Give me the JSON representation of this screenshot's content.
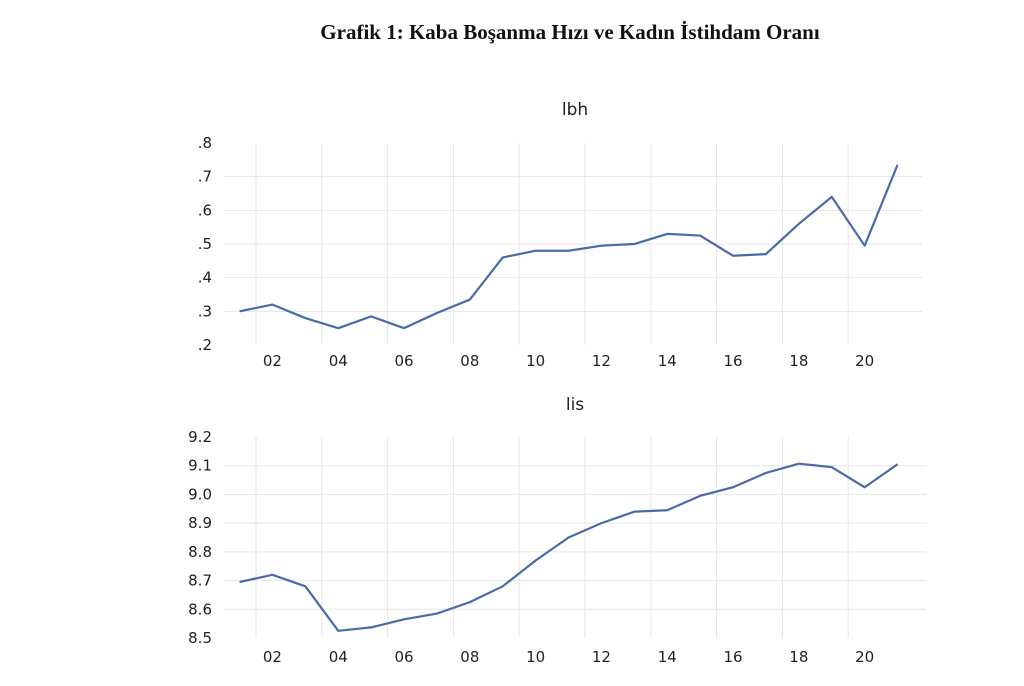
{
  "page_title": "Grafik 1: Kaba Boşanma Hızı ve Kadın İstihdam Oranı",
  "chart_data": [
    {
      "type": "line",
      "title": "lbh",
      "x": [
        2001,
        2002,
        2003,
        2004,
        2005,
        2006,
        2007,
        2008,
        2009,
        2010,
        2011,
        2012,
        2013,
        2014,
        2015,
        2016,
        2017,
        2018,
        2019,
        2020,
        2021
      ],
      "values": [
        0.3,
        0.32,
        0.28,
        0.25,
        0.285,
        0.25,
        0.295,
        0.335,
        0.46,
        0.48,
        0.48,
        0.495,
        0.5,
        0.53,
        0.525,
        0.465,
        0.47,
        0.56,
        0.64,
        0.495,
        0.735
      ],
      "xtick_labels": [
        "02",
        "04",
        "06",
        "08",
        "10",
        "12",
        "14",
        "16",
        "18",
        "20"
      ],
      "ytick_labels": [
        ".2",
        ".3",
        ".4",
        ".5",
        ".6",
        ".7",
        ".8"
      ],
      "yticks": [
        0.2,
        0.3,
        0.4,
        0.5,
        0.6,
        0.7,
        0.8
      ],
      "ylim": [
        0.2,
        0.8
      ],
      "xlim": [
        2001,
        2022
      ],
      "grid": true,
      "line_color": "#4a6aa8"
    },
    {
      "type": "line",
      "title": "lis",
      "x": [
        2001,
        2002,
        2003,
        2004,
        2005,
        2006,
        2007,
        2008,
        2009,
        2010,
        2011,
        2012,
        2013,
        2014,
        2015,
        2016,
        2017,
        2018,
        2019,
        2020,
        2021
      ],
      "values": [
        8.695,
        8.72,
        8.68,
        8.525,
        8.537,
        8.565,
        8.585,
        8.625,
        8.68,
        8.77,
        8.85,
        8.9,
        8.94,
        8.945,
        8.995,
        9.025,
        9.075,
        9.107,
        9.095,
        9.025,
        9.105
      ],
      "xtick_labels": [
        "02",
        "04",
        "06",
        "08",
        "10",
        "12",
        "14",
        "16",
        "18",
        "20"
      ],
      "ytick_labels": [
        "8.5",
        "8.6",
        "8.7",
        "8.8",
        "8.9",
        "9.0",
        "9.1",
        "9.2"
      ],
      "yticks": [
        8.5,
        8.6,
        8.7,
        8.8,
        8.9,
        9.0,
        9.1,
        9.2
      ],
      "ylim": [
        8.5,
        9.2
      ],
      "xlim": [
        2001,
        2022
      ],
      "grid": true,
      "line_color": "#4a6aa8"
    }
  ]
}
